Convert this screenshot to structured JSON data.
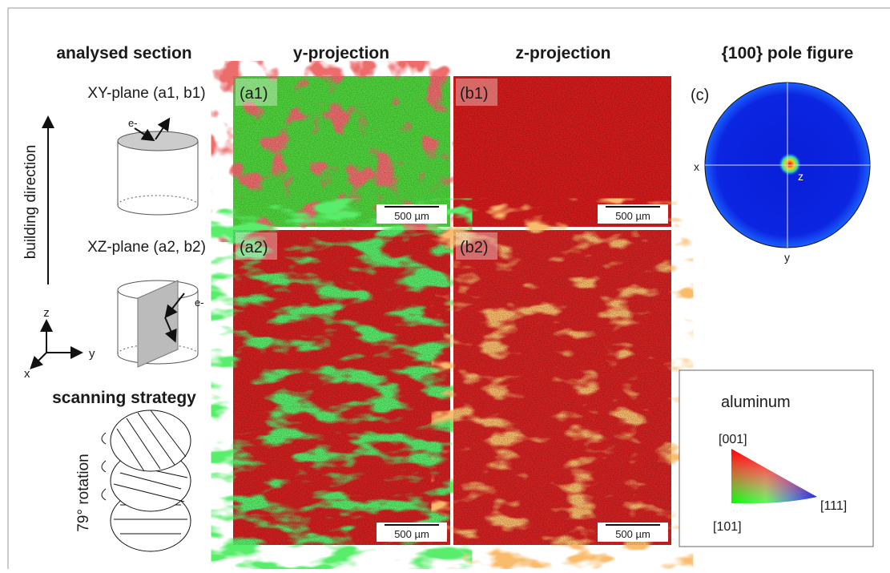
{
  "header": {
    "columns": [
      "analysed section",
      "y-projection",
      "z-projection",
      "{100} pole figure"
    ]
  },
  "left": {
    "xy_plane": "XY-plane (a1, b1)",
    "xz_plane": "XZ-plane (a2, b2)",
    "building_direction": "building direction",
    "electron": "e-",
    "axes": [
      "z",
      "y",
      "x"
    ],
    "scanning_strategy": "scanning strategy",
    "rotation": "79° rotation"
  },
  "panels": [
    {
      "label": "(a1)",
      "scale": "500 µm"
    },
    {
      "label": "(b1)",
      "scale": "500 µm"
    },
    {
      "label": "(a2)",
      "scale": "500 µm"
    },
    {
      "label": "(b2)",
      "scale": "500 µm"
    }
  ],
  "pole_figure": {
    "label": "(c)",
    "axes": [
      "x",
      "z",
      "y"
    ]
  },
  "legend": {
    "title": "aluminum",
    "corners": [
      "[001]",
      "[101]",
      "[111]"
    ]
  }
}
